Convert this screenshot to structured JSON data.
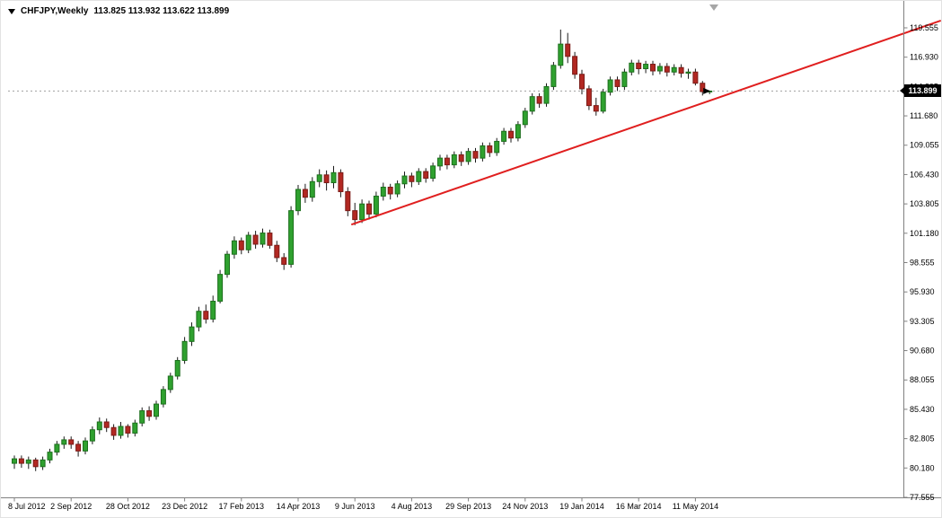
{
  "window": {
    "background": "#ffffff"
  },
  "header": {
    "symbol": "CHFJPY,Weekly",
    "ohlc": "113.825 113.932 113.622 113.899"
  },
  "price_axis": {
    "ticks": [
      "119.555",
      "116.930",
      "114.305",
      "111.680",
      "109.055",
      "106.430",
      "103.805",
      "101.180",
      "98.555",
      "95.930",
      "93.305",
      "90.680",
      "88.055",
      "85.430",
      "82.805",
      "80.180",
      "77.555"
    ],
    "current_price_label": "113.899"
  },
  "chart_data": {
    "type": "candlestick",
    "title": "CHFJPY,Weekly",
    "symbol": "CHFJPY",
    "timeframe": "Weekly",
    "ylim": [
      77.555,
      119.555
    ],
    "current_price": 113.899,
    "x_labels": [
      {
        "i": 0,
        "label": "8 Jul 2012"
      },
      {
        "i": 8,
        "label": "2 Sep 2012"
      },
      {
        "i": 16,
        "label": "28 Oct 2012"
      },
      {
        "i": 24,
        "label": "23 Dec 2012"
      },
      {
        "i": 32,
        "label": "17 Feb 2013"
      },
      {
        "i": 40,
        "label": "14 Apr 2013"
      },
      {
        "i": 48,
        "label": "9 Jun 2013"
      },
      {
        "i": 56,
        "label": "4 Aug 2013"
      },
      {
        "i": 64,
        "label": "29 Sep 2013"
      },
      {
        "i": 72,
        "label": "24 Nov 2013"
      },
      {
        "i": 80,
        "label": "19 Jan 2014"
      },
      {
        "i": 88,
        "label": "16 Mar 2014"
      },
      {
        "i": 96,
        "label": "11 May 2014"
      }
    ],
    "candles": [
      [
        80.6,
        81.3,
        80.1,
        81.0
      ],
      [
        81.0,
        81.3,
        80.2,
        80.6
      ],
      [
        80.6,
        81.2,
        80.1,
        80.9
      ],
      [
        80.9,
        81.1,
        79.9,
        80.3
      ],
      [
        80.3,
        81.2,
        80.0,
        80.9
      ],
      [
        80.9,
        81.9,
        80.6,
        81.6
      ],
      [
        81.6,
        82.6,
        81.3,
        82.3
      ],
      [
        82.3,
        83.0,
        81.9,
        82.7
      ],
      [
        82.7,
        83.0,
        81.9,
        82.3
      ],
      [
        82.3,
        82.6,
        81.2,
        81.7
      ],
      [
        81.7,
        82.9,
        81.4,
        82.6
      ],
      [
        82.6,
        83.9,
        82.3,
        83.6
      ],
      [
        83.6,
        84.7,
        83.2,
        84.3
      ],
      [
        84.3,
        84.6,
        83.4,
        83.8
      ],
      [
        83.8,
        84.1,
        82.7,
        83.1
      ],
      [
        83.1,
        84.3,
        82.8,
        83.9
      ],
      [
        83.9,
        84.1,
        82.9,
        83.3
      ],
      [
        83.3,
        84.5,
        83.0,
        84.2
      ],
      [
        84.2,
        85.6,
        83.9,
        85.3
      ],
      [
        85.3,
        85.7,
        84.4,
        84.8
      ],
      [
        84.8,
        86.2,
        84.5,
        85.9
      ],
      [
        85.9,
        87.5,
        85.6,
        87.2
      ],
      [
        87.2,
        88.7,
        86.9,
        88.4
      ],
      [
        88.4,
        90.1,
        88.1,
        89.8
      ],
      [
        89.8,
        91.9,
        89.5,
        91.5
      ],
      [
        91.5,
        93.2,
        91.1,
        92.8
      ],
      [
        92.8,
        94.6,
        92.4,
        94.2
      ],
      [
        94.2,
        94.8,
        93.1,
        93.5
      ],
      [
        93.5,
        95.6,
        93.2,
        95.1
      ],
      [
        95.1,
        97.9,
        94.9,
        97.5
      ],
      [
        97.5,
        99.6,
        97.2,
        99.3
      ],
      [
        99.3,
        100.9,
        98.9,
        100.5
      ],
      [
        100.5,
        100.8,
        99.3,
        99.7
      ],
      [
        99.7,
        101.3,
        99.4,
        101.0
      ],
      [
        101.0,
        101.4,
        99.8,
        100.2
      ],
      [
        100.2,
        101.6,
        99.9,
        101.2
      ],
      [
        101.2,
        101.5,
        99.8,
        100.1
      ],
      [
        100.1,
        100.5,
        98.6,
        99.0
      ],
      [
        99.0,
        99.4,
        97.9,
        98.4
      ],
      [
        98.4,
        103.6,
        98.1,
        103.2
      ],
      [
        103.2,
        105.5,
        102.8,
        105.1
      ],
      [
        105.1,
        105.6,
        103.9,
        104.4
      ],
      [
        104.4,
        106.2,
        104.0,
        105.8
      ],
      [
        105.8,
        106.9,
        105.3,
        106.4
      ],
      [
        106.4,
        106.8,
        105.0,
        105.7
      ],
      [
        105.7,
        107.2,
        105.2,
        106.6
      ],
      [
        106.6,
        106.9,
        104.4,
        104.9
      ],
      [
        104.9,
        105.3,
        102.7,
        103.2
      ],
      [
        103.2,
        103.9,
        101.9,
        102.4
      ],
      [
        102.4,
        104.2,
        102.1,
        103.8
      ],
      [
        103.8,
        104.1,
        102.4,
        102.9
      ],
      [
        102.9,
        104.9,
        102.6,
        104.5
      ],
      [
        104.5,
        105.7,
        104.1,
        105.3
      ],
      [
        105.3,
        105.6,
        104.2,
        104.7
      ],
      [
        104.7,
        105.9,
        104.4,
        105.6
      ],
      [
        105.6,
        106.7,
        105.2,
        106.3
      ],
      [
        106.3,
        106.6,
        105.3,
        105.8
      ],
      [
        105.8,
        107.0,
        105.5,
        106.7
      ],
      [
        106.7,
        107.0,
        105.7,
        106.1
      ],
      [
        106.1,
        107.5,
        105.8,
        107.2
      ],
      [
        107.2,
        108.2,
        106.8,
        107.9
      ],
      [
        107.9,
        108.2,
        106.9,
        107.3
      ],
      [
        107.3,
        108.5,
        107.0,
        108.2
      ],
      [
        108.2,
        108.5,
        107.2,
        107.6
      ],
      [
        107.6,
        108.8,
        107.3,
        108.5
      ],
      [
        108.5,
        108.8,
        107.5,
        107.9
      ],
      [
        107.9,
        109.3,
        107.6,
        109.0
      ],
      [
        109.0,
        109.3,
        108.0,
        108.4
      ],
      [
        108.4,
        109.7,
        108.1,
        109.4
      ],
      [
        109.4,
        110.6,
        109.1,
        110.3
      ],
      [
        110.3,
        110.6,
        109.3,
        109.7
      ],
      [
        109.7,
        111.2,
        109.4,
        110.9
      ],
      [
        110.9,
        112.4,
        110.6,
        112.1
      ],
      [
        112.1,
        113.7,
        111.8,
        113.4
      ],
      [
        113.4,
        113.7,
        112.4,
        112.8
      ],
      [
        112.8,
        114.6,
        112.5,
        114.3
      ],
      [
        114.3,
        116.5,
        114.0,
        116.2
      ],
      [
        116.2,
        119.4,
        115.9,
        118.1
      ],
      [
        118.1,
        119.1,
        116.4,
        117.0
      ],
      [
        117.0,
        117.4,
        115.0,
        115.4
      ],
      [
        115.4,
        115.8,
        113.6,
        114.1
      ],
      [
        114.1,
        114.4,
        112.2,
        112.6
      ],
      [
        112.6,
        113.3,
        111.7,
        112.1
      ],
      [
        112.1,
        114.1,
        111.9,
        113.8
      ],
      [
        113.8,
        115.2,
        113.5,
        114.9
      ],
      [
        114.9,
        115.2,
        113.9,
        114.3
      ],
      [
        114.3,
        115.9,
        114.0,
        115.6
      ],
      [
        115.6,
        116.7,
        115.3,
        116.4
      ],
      [
        116.4,
        116.7,
        115.4,
        115.9
      ],
      [
        115.9,
        116.6,
        115.5,
        116.3
      ],
      [
        116.3,
        116.6,
        115.3,
        115.7
      ],
      [
        115.7,
        116.4,
        115.4,
        116.1
      ],
      [
        116.1,
        116.4,
        115.2,
        115.6
      ],
      [
        115.6,
        116.3,
        115.3,
        116.0
      ],
      [
        116.0,
        116.3,
        115.1,
        115.5
      ],
      [
        115.5,
        115.9,
        115.0,
        115.6
      ],
      [
        115.6,
        115.9,
        114.4,
        114.6
      ],
      [
        114.6,
        114.8,
        113.5,
        113.85
      ],
      [
        113.825,
        113.932,
        113.622,
        113.899
      ]
    ],
    "trendline": {
      "from": {
        "index": 47.5,
        "price": 101.95
      },
      "to": {
        "index": 130.6,
        "price": 120.2
      },
      "color": "#e01f1f"
    },
    "colors": {
      "up_fill": "#2fa12f",
      "up_stroke": "#1d6f1d",
      "down_fill": "#b22822",
      "down_stroke": "#7a1b17",
      "wick": "#1a1a1a",
      "bid_line": "#a0a0a0",
      "trendline": "#e01f1f",
      "axis": "#808080",
      "price_tag_bg": "#000000",
      "price_tag_text": "#ffffff"
    }
  }
}
